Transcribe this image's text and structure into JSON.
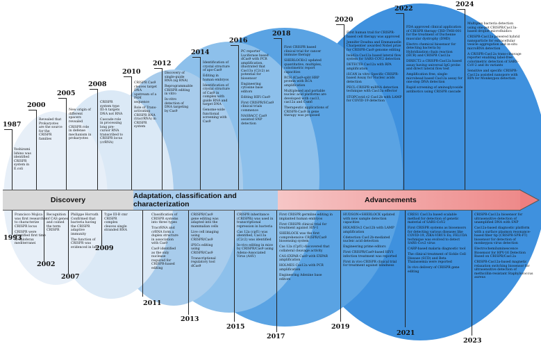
{
  "colors": {
    "c1": "#e7eff8",
    "c2": "#dbe9f6",
    "c3": "#a8ccec",
    "c4": "#8dc0eb",
    "c5": "#5aa3e3",
    "c6": "#3f91de",
    "band1": "#d8d8d8",
    "band2": "#a9cdee",
    "band3": "#f6c6c6",
    "arrow": "#ee7f7f"
  },
  "phases": {
    "discovery": "Discovery",
    "adaptation": "Adaptation, classification and characterization",
    "advancements": "Advancements"
  },
  "years": {
    "y1987": "1987",
    "y1993": "1993",
    "y2000": "2000",
    "y2002": "2002",
    "y2005": "2005",
    "y2007": "2007",
    "y2008": "2008",
    "y2009": "2009",
    "y2010": "2010",
    "y2011": "2011",
    "y2012": "2012",
    "y2013": "2013",
    "y2014": "2014",
    "y2015": "2015",
    "y2016": "2016",
    "y2017": "2017",
    "y2018": "2018",
    "y2019": "2019",
    "y2020": "2020",
    "y2021": "2021",
    "y2022": "2022",
    "y2023": "2023",
    "y2024": "2024"
  },
  "t": {
    "a1987": "Yoshizumi Ishino was identified CRISPR system in E.coli",
    "a2000": "Revealed that Prokaryotes are the source for the CRISPR families",
    "a2005": "New origin of different spacers revealed",
    "a2005b": "CRISPR role in defense mechanism in prokaryotes",
    "a2008": "CRISPR system type III-A targets DNA not RNA",
    "a2008b": "Cascade role in processing long pre-cursor RNA transcribed to CRISPR locus (crRNA)",
    "a2010": "CRISPR Cas9 cleaves target DNA upstream of a PAM sequence",
    "a2010b": "Role of Trans-activating CRISPR RNA (tracrRNA) in CRISPR system",
    "a2012": "Discovery of single-guide RNA (sg RNA)",
    "a2012b": "Reprogrammable CRISPR editing in vitro",
    "a2012c": "In-vitro detection of DNA targeting by Cas9",
    "a2014": "Identification of crystal structure of apo-Cas9",
    "a2014b": "Editing in human embryos",
    "a2014c": "Identification of crystal structure of Cas9 in complex with guide RNA and target DNA",
    "a2014d": "Genome-wide functional screening with Cas9",
    "a2016": "PC reporter Luciferase based dCas9 with PCR amplification, illustrated that Cas13a (C2c2) as potential for biosensor",
    "a2016b": "Engineering cytosine base editors",
    "a2016c": "Editing HIFi Cas9",
    "a2016d": "First CRISPR/SCas9 clinical trials commence",
    "a2016e": "NASBACC Cas9 assisted SNP detection",
    "a2018": "First CRISPR based clinical trial for cancer immune therapy",
    "a2018b": "SHERLOCKv2 updated quantitative, multiplex, colorimetric report capacities",
    "a2018c": "RCH dCas9-split HRP protein with RCA amplification",
    "a2018d": "Multiplexed and portable nucleic acid platforms are developed with cas13, cas12a and Csm6",
    "a2018e": "Therapeutic applications of CRISPR-Cas9 in gene therapy was proposed",
    "a2020": "First human trail for CRISPR- based cell therapy was approved",
    "a2020b": "Jennifer Doudna and Emmanuelle Charpentier awarded Nobel prize for CRISPR-Cas9 genome editing",
    "a2020c": "lwiid2a Cas12a based lateral flow system for SARS-COV2 detection",
    "a2020d": "DETECTR Cas12a with RPA amplification",
    "a2020e": "iSCAN in vitro Specific CRISPR-based Assay for Nucleic acids detection",
    "a2020f": "PECL-CRISPR miRNA detection technique with Cas13a effector",
    "a2020g": "STOPCovid.v2 Cas12b with LAMP for COVID-19 detection",
    "a2022": "FDA approved clinical application of CRISPR therapy CRD-TMH-001 for the treatment of Duchenne muscular dystrophy (DMD)",
    "a2022b": "Electro chemical biosensor for detecting bacteria by Hybridization chain reaction (HCR) and CRISPR Cas12a",
    "a2022c": "DIRECT2 a CRISPR-Cas12a based assay having universal IgG probe and direct lateral flow test",
    "a2022d": "Amplification free, single-microbead based Cas12a assay for one-step DNA detection",
    "a2022e": "Rapid screening of aminoglycoside antibiotics using CRISPR cascade",
    "a2024": "Multiplex bacteria detection using one-pot CRISPR/Cas13a-based droplet microfluidics",
    "a2024b": "CRISPR-Cas12a powered hybrid nanoparticle for extracellular vesicle aggregation and in-situ microRNA detection",
    "a2024c": "A CRISPR-Cas12a trans-cleavage reporter enabling label-free colorimetric detection of SARS-CoV-2 and its variants",
    "a2024d": "Sensitive and specific CRISPR-Cas12a assisted nanopore with RPA for Monkeypox detection",
    "b1993": "Francisco Mojica was first researcher to characterize CRISPR locus",
    "b1993b": "CRISPR were identified first time in haloferax mediterranei",
    "b2002": "Recognition of CAS genes and coined the term CRISPR",
    "b2007": "Philippe Horvath Confirmed that bacteria having the CRISPR adaptive immunity",
    "b2007b": "The function of CRISPR was evidenced in lab",
    "b2009": "Type III-B cmr CRISPR complex cleaves single stranded RNA",
    "b2011": "Classification of CRISPR systems into three types",
    "b2011b": "TracrRNA and crRNA form a duplex structure in association with Cas9",
    "b2011c": "Cas9 identified as the only nuclease required for CRISPR-based editing",
    "b2013": "CRISPR/Cas9 gene editing was adapted into the mammalian cells",
    "b2013b": "Live cell imaging using CRISPR/Cas9",
    "b2013c": "iPSCs editing using CRISPR/Cas9",
    "b2013d": "Transcriptional regulatory tool dCas9",
    "b2015": "CRISPR inheritance (CRISPRi) was used in transcriptional repression in bacteria",
    "b2015b": "Cas 12a (cpf1) was identified, Cas13a (C2c2) was identified",
    "b2015c": "In-vivo editing in mice by CRISPR/Cas9 using Adeno-Associated Virus (AAV)",
    "b2017": "First CRISPR germline editing in implanted human embryos",
    "b2017b": "First CRISPR clinical trial for treatment against HIV-1",
    "b2017c": "SHERLOCK was the first comprehensive CRISPR/Cas9 biosensing system",
    "b2017d": "Cas 12a (Cpf1) discovered that collateral cleavage activity",
    "b2017e": "CAS-EXPAR Cas9 with EXPAR amplification",
    "b2017f": "HOLMES Cas12a with PCR amplification",
    "b2017g": "Engineering Adenine base editors",
    "b2019": "HUDSON+SHERLOCK updated with new sample detection capacities",
    "b2019b": "HOLMESv2 Cas12b with LAMP amplification",
    "b2019c": "Cdetection Cas12b-mediated nucleic acid detection",
    "b2019d": "Engineering prime editors",
    "b2019e": "First CRISPR/Cas9-based HIV1 infection treatment was reported",
    "b2019f": "First in vivo CRISPR clinical trial for treatment against blindness",
    "b2021": "CRES1 Cas13a based scalable method for detection of genetic material of SARS-CoV2",
    "b2021b": "First CRISPR systems as biosensors for detecting various diseases like COVID-19, ZIKA-VIRUS Ex; FELUDA technique was evolved to detect SARS-Cov2 virus",
    "b2021c": "CARP-based malaria diagnostic tool",
    "b2021d": "The clinical treatment of Sickle Cell Disease (SCD) and Beta Thalassemia were reported",
    "b2021e": "In vivo delivery of CRISPR gene editing",
    "b2023": "CRISPR-Cas12a biosensor for ultrasensitive detection of unamplified DNA with SNP",
    "b2023b": "Cas12a-based diagnostic platform with a surface plasmon resonance-based fiber tip (CRISPR-SPR-FT) biosensor for detection of monkeypox virus detection",
    "b2023c": "Electrochemiluminescence Biosensor for HPV-16 Detection Based on CRISPR/Cas12a",
    "b2023d": "CRISPR-Cas12a-based magnetic relaxation switching biosensor for ultrasensitive detection of methicillin-resistant Staphylococcus aureus"
  }
}
